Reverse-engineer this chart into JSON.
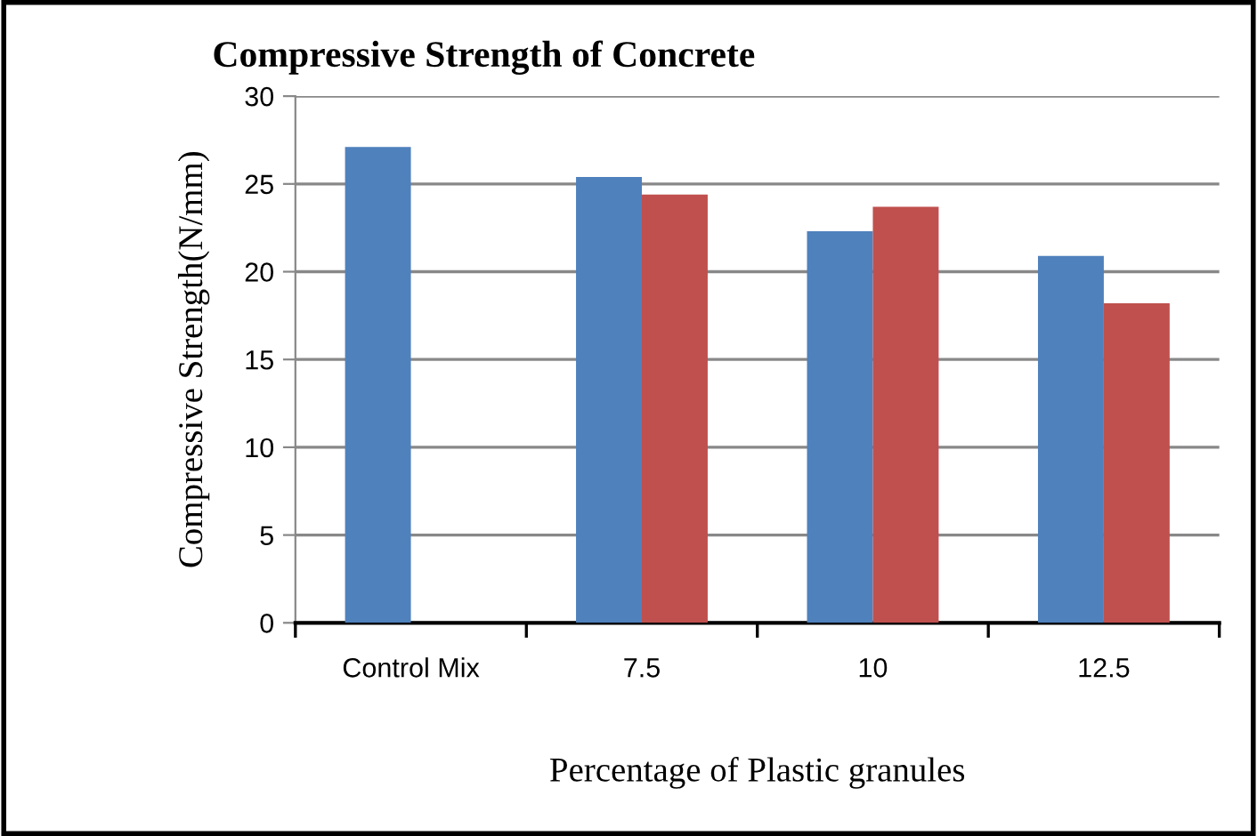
{
  "chart_data": {
    "type": "bar",
    "title": "Compressive Strength of Concrete",
    "xlabel": "Percentage of Plastic granules",
    "ylabel": "Compressive Strength(N/mm)",
    "categories": [
      "Control Mix",
      "7.5",
      "10",
      "12.5"
    ],
    "series": [
      {
        "color": "#4f81bd",
        "values": [
          27.1,
          25.4,
          22.3,
          20.9
        ]
      },
      {
        "color": "#c0504d",
        "values": [
          null,
          24.4,
          23.7,
          18.2
        ]
      }
    ],
    "ylim": [
      0,
      30
    ],
    "yticks": [
      0,
      5,
      10,
      15,
      20,
      25,
      30
    ],
    "grid": "y",
    "legend": false
  }
}
